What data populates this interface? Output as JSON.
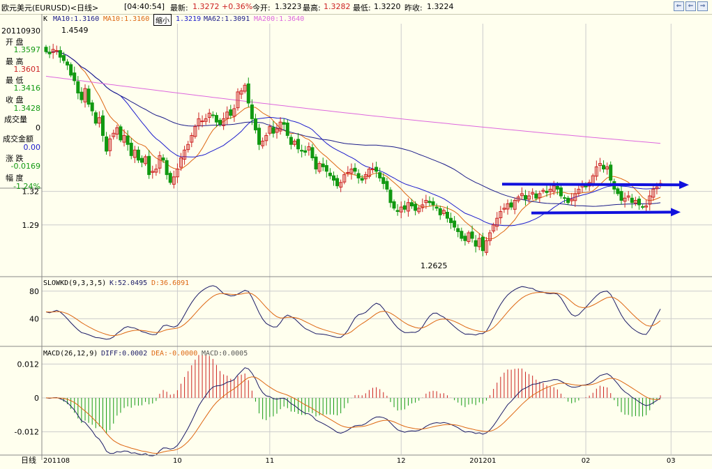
{
  "title_bar": {
    "instrument": "欧元美元(EURUSD)<日线>",
    "time": "[04:40:54]",
    "latest_label": "最新:",
    "latest": "1.3272",
    "change_pct": "+0.36%",
    "open_label": "今开:",
    "open": "1.3223",
    "high_label": "最高:",
    "high": "1.3282",
    "low_label": "最低:",
    "low": "1.3220",
    "prev_close_label": "昨收:",
    "prev_close": "1.3224"
  },
  "nav_buttons": [
    "⇐",
    "⇐",
    "⇒"
  ],
  "price_header": {
    "k": "K",
    "ma10a": "MA10:1.3160",
    "ma10b": "MA10:1.3160",
    "zoom": "缩小",
    "ma_hidden": "1.3219",
    "ma62": "MA62:1.3091",
    "ma200": "MA200:1.3640"
  },
  "info_panel": {
    "date": "20110930",
    "open_label": "开  盘",
    "open": "1.3597",
    "high_label": "最  高",
    "high": "1.3601",
    "low_label": "最  低",
    "low": "1.3416",
    "close_label": "收  盘",
    "close": "1.3428",
    "volume_label": "成交量",
    "volume": "0",
    "amount_label": "成交金额",
    "amount": "0.00",
    "change_label": "涨  跌",
    "change": "-0.0169",
    "amplitude_label": "幅  度",
    "amplitude": "-1.24%"
  },
  "annotations": {
    "max_label": "1.4549",
    "min_label": "1.2625"
  },
  "kd_header": {
    "name": "SLOWKD(9,3,3,5)",
    "k": "K:52.0495",
    "d": "D:36.6091"
  },
  "macd_header": {
    "name": "MACD(26,12,9)",
    "diff": "DIFF:0.0002",
    "dea": "DEA:-0.0000",
    "macd": "MACD:0.0005"
  },
  "x_axis": {
    "corner_label": "日线",
    "ticks": [
      "201108",
      "10",
      "11",
      "12",
      "201201",
      "02",
      "03"
    ]
  },
  "colors": {
    "up": "#cc2222",
    "down": "#119911",
    "ma10": "#dd6611",
    "ma_blue": "#1a1acc",
    "ma62": "#1a1a88",
    "ma200": "#dd66dd",
    "arrow": "#1111dd",
    "grid": "#cccccc"
  },
  "chart_data": [
    {
      "type": "candlestick",
      "title": "欧元美元(EURUSD)<日线>",
      "y_ticks": [
        "1.32",
        "1.29"
      ],
      "ylim": [
        1.245,
        1.47
      ],
      "series_lines": [
        "MA10",
        "MA10",
        "MA62",
        "MA200"
      ],
      "closes": [
        1.445,
        1.443,
        1.447,
        1.446,
        1.44,
        1.437,
        1.433,
        1.424,
        1.419,
        1.408,
        1.402,
        1.412,
        1.398,
        1.392,
        1.381,
        1.386,
        1.37,
        1.356,
        1.367,
        1.372,
        1.377,
        1.366,
        1.37,
        1.362,
        1.352,
        1.357,
        1.348,
        1.346,
        1.351,
        1.335,
        1.338,
        1.34,
        1.352,
        1.348,
        1.335,
        1.328,
        1.333,
        1.34,
        1.35,
        1.357,
        1.362,
        1.37,
        1.378,
        1.385,
        1.383,
        1.385,
        1.39,
        1.388,
        1.382,
        1.38,
        1.385,
        1.391,
        1.388,
        1.394,
        1.409,
        1.41,
        1.415,
        1.399,
        1.385,
        1.375,
        1.362,
        1.365,
        1.37,
        1.378,
        1.372,
        1.376,
        1.382,
        1.38,
        1.37,
        1.362,
        1.365,
        1.358,
        1.356,
        1.355,
        1.36,
        1.35,
        1.34,
        1.345,
        1.342,
        1.338,
        1.334,
        1.33,
        1.325,
        1.328,
        1.335,
        1.337,
        1.34,
        1.338,
        1.332,
        1.33,
        1.335,
        1.34,
        1.34,
        1.338,
        1.332,
        1.327,
        1.322,
        1.31,
        1.305,
        1.302,
        1.306,
        1.304,
        1.31,
        1.307,
        1.303,
        1.305,
        1.308,
        1.312,
        1.31,
        1.308,
        1.305,
        1.299,
        1.303,
        1.296,
        1.292,
        1.288,
        1.284,
        1.278,
        1.276,
        1.283,
        1.278,
        1.271,
        1.278,
        1.267,
        1.276,
        1.283,
        1.29,
        1.296,
        1.302,
        1.305,
        1.309,
        1.306,
        1.312,
        1.315,
        1.318,
        1.313,
        1.316,
        1.319,
        1.314,
        1.318,
        1.321,
        1.319,
        1.322,
        1.325,
        1.322,
        1.316,
        1.314,
        1.31,
        1.313,
        1.318,
        1.322,
        1.326,
        1.324,
        1.328,
        1.334,
        1.342,
        1.345,
        1.34,
        1.342,
        1.33,
        1.322,
        1.318,
        1.312,
        1.314,
        1.316,
        1.31,
        1.312,
        1.308,
        1.306,
        1.307,
        1.316,
        1.322,
        1.324,
        1.3272
      ],
      "last": {
        "open": 1.3223,
        "high": 1.3282,
        "low": 1.322,
        "close": 1.3272
      },
      "first_shown": {
        "date": "20110930",
        "open": 1.3597,
        "high": 1.3601,
        "low": 1.3416,
        "close": 1.3428
      }
    },
    {
      "type": "line",
      "title": "SLOWKD(9,3,3,5)",
      "y_ticks": [
        "80",
        "40"
      ],
      "ylim": [
        0,
        100
      ],
      "series": [
        {
          "name": "K",
          "last": 52.0495
        },
        {
          "name": "D",
          "last": 36.6091
        }
      ]
    },
    {
      "type": "line+bar",
      "title": "MACD(26,12,9)",
      "y_ticks": [
        "0.012",
        "0",
        "-0.012"
      ],
      "ylim": [
        -0.02,
        0.018
      ],
      "series": [
        {
          "name": "DIFF",
          "last": 0.0002
        },
        {
          "name": "DEA",
          "last": -0.0
        },
        {
          "name": "MACD",
          "last": 0.0005
        }
      ]
    }
  ]
}
